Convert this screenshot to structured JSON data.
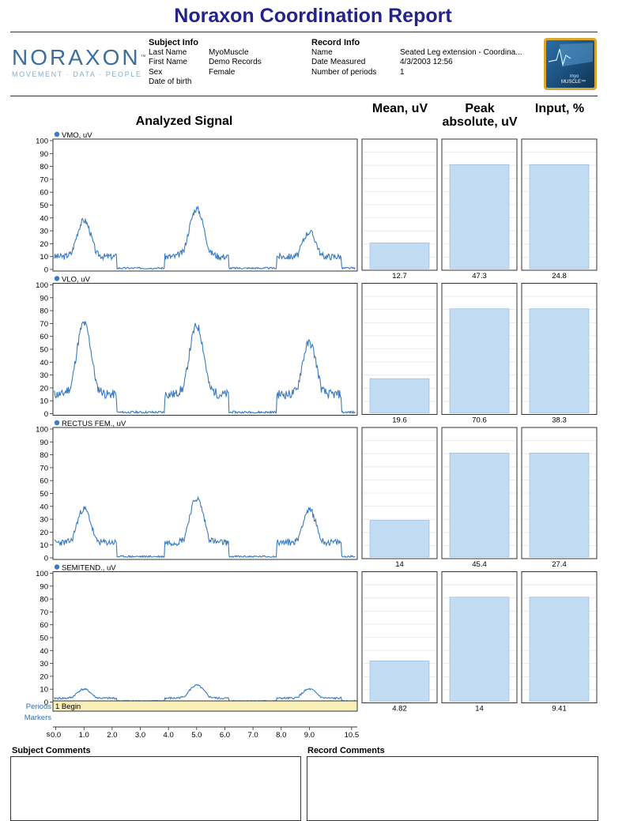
{
  "report": {
    "title": "Noraxon Coordination Report"
  },
  "logo": {
    "word": "NORAXON",
    "tm": "™",
    "tagline": "MOVEMENT · DATA · PEOPLE"
  },
  "subject_info": {
    "heading": "Subject Info",
    "rows": [
      {
        "label": "Last Name",
        "value": "MyoMuscle"
      },
      {
        "label": "First Name",
        "value": "Demo Records"
      },
      {
        "label": "Sex",
        "value": "Female"
      },
      {
        "label": "Date of birth",
        "value": ""
      }
    ]
  },
  "record_info": {
    "heading": "Record Info",
    "rows": [
      {
        "label": "Name",
        "value": "Seated Leg extension - Coordina..."
      },
      {
        "label": "Date Measured",
        "value": "4/3/2003 12:56"
      },
      {
        "label": "Number of periods",
        "value": "1"
      }
    ]
  },
  "myo_badge": {
    "line1": "myo",
    "line2": "MUSCLE™"
  },
  "columns": {
    "analyzed": "Analyzed Signal",
    "mean": "Mean, uV",
    "peak_line1": "Peak",
    "peak_line2": "absolute, uV",
    "input": "Input, %"
  },
  "time_axis": {
    "unit": "s",
    "ticks": [
      "0.0",
      "1.0",
      "2.0",
      "3.0",
      "4.0",
      "5.0",
      "6.0",
      "7.0",
      "8.0",
      "9.0",
      "10.5"
    ],
    "tick_values": [
      0,
      1,
      2,
      3,
      4,
      5,
      6,
      7,
      8,
      9,
      10.5
    ],
    "range": [
      -0.1,
      10.7
    ]
  },
  "periods": {
    "label": "Periods",
    "value": "1 Begin",
    "fill": "#f8f0b8"
  },
  "markers": {
    "label": "Markers"
  },
  "comments": {
    "subject": "Subject Comments",
    "record": "Record Comments"
  },
  "chart_data": {
    "type": "line",
    "x_unit": "s",
    "y_ticks": [
      "0",
      "10",
      "20",
      "30",
      "40",
      "50",
      "60",
      "70",
      "80",
      "90",
      "100"
    ],
    "ylim": [
      0,
      100
    ],
    "line_color": "#3a7cc4",
    "bar_fill": "#c2dcf4",
    "bar_ylim": [
      0,
      100
    ],
    "series": [
      {
        "name": "VMO, uV",
        "peaks": [
          [
            1.0,
            38
          ],
          [
            5.0,
            47
          ],
          [
            9.0,
            29
          ]
        ],
        "baseline": 10,
        "noise": 5,
        "seed": 3,
        "mean": "12.7",
        "peak": "47.3",
        "input": "24.8",
        "bars": {
          "mean": 21,
          "peak": 85,
          "input": 85
        }
      },
      {
        "name": "VLO, uV",
        "peaks": [
          [
            1.0,
            70
          ],
          [
            5.0,
            68
          ],
          [
            9.0,
            55
          ]
        ],
        "baseline": 15,
        "noise": 7,
        "seed": 11,
        "mean": "19.6",
        "peak": "70.6",
        "input": "38.3",
        "bars": {
          "mean": 28,
          "peak": 85,
          "input": 85
        }
      },
      {
        "name": "RECTUS FEM., uV",
        "peaks": [
          [
            1.0,
            38
          ],
          [
            5.0,
            46
          ],
          [
            9.0,
            37
          ]
        ],
        "baseline": 12,
        "noise": 5,
        "seed": 23,
        "mean": "14",
        "peak": "45.4",
        "input": "27.4",
        "bars": {
          "mean": 30,
          "peak": 85,
          "input": 85
        }
      },
      {
        "name": "SEMITEND., uV",
        "peaks": [
          [
            1.0,
            10
          ],
          [
            5.0,
            13
          ],
          [
            9.0,
            10
          ]
        ],
        "baseline": 3,
        "noise": 1.5,
        "seed": 41,
        "mean": "4.82",
        "peak": "14",
        "input": "9.41",
        "bars": {
          "mean": 33,
          "peak": 85,
          "input": 85
        }
      }
    ]
  }
}
